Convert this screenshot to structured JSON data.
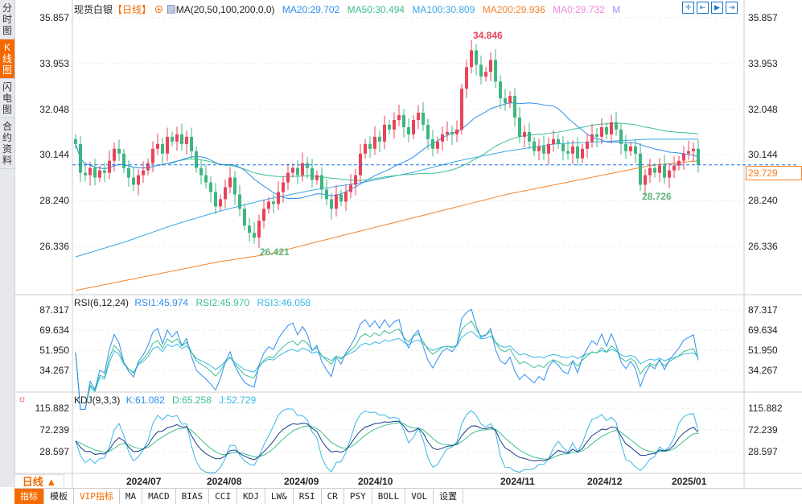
{
  "sidebar": {
    "tabs": [
      "分时图",
      "K线图",
      "闪电图",
      "合约资料"
    ],
    "active": 1
  },
  "header": {
    "symbol": "现货白银",
    "period": "【日线】",
    "ma_label": "MA(20,50,100,200,0,0)",
    "ma20": "MA20:29.702",
    "ma50": "MA50:30.494",
    "ma100": "MA100:30.809",
    "ma200": "MA200:29.936",
    "ma0": "MA0:29.732",
    "m": "M"
  },
  "colors": {
    "up": "#e8445a",
    "down": "#3eb680",
    "ma20": "#2f8fef",
    "ma50": "#3cc08a",
    "ma100": "#38a8e8",
    "ma200": "#f5822a",
    "last": "#1a73e8"
  },
  "price_axis": {
    "ticks": [
      "35.857",
      "33.953",
      "32.048",
      "30.144",
      "28.240",
      "26.336"
    ],
    "values": [
      35.857,
      33.953,
      32.048,
      30.144,
      28.24,
      26.336
    ]
  },
  "last_price": "29.729",
  "annotations": {
    "high": "34.846",
    "low1": "26.421",
    "low2": "28.726"
  },
  "rsi": {
    "label": "RSI(6,12,24)",
    "r1": "RSI1:45.974",
    "r2": "RSI2:45.970",
    "r3": "RSI3:46.058",
    "ticks": [
      "87.317",
      "69.634",
      "51.950",
      "34.267"
    ],
    "values": [
      87.317,
      69.634,
      51.95,
      34.267
    ]
  },
  "kdj": {
    "label": "KDJ(9,3,3)",
    "k": "K:61.082",
    "d": "D:65.258",
    "j": "J:52.729",
    "ticks": [
      "115.882",
      "72.239",
      "28.597"
    ],
    "values": [
      115.882,
      72.239,
      28.597
    ]
  },
  "dates": [
    "2024/07",
    "2024/08",
    "2024/09",
    "2024/10",
    "2024/11",
    "2024/12",
    "2025/01"
  ],
  "period_selector": "日线 ▲",
  "toolbar": [
    "指标",
    "模板",
    "VIP指标",
    "MA",
    "MACD",
    "BIAS",
    "CCI",
    "KDJ",
    "LW&",
    "RSI",
    "CR",
    "PSY",
    "BOLL",
    "VOL",
    "设置"
  ],
  "closes": [
    30.6,
    29.4,
    29.3,
    29.6,
    29.2,
    29.5,
    29.4,
    29.9,
    30.4,
    30.2,
    29.6,
    29.2,
    28.9,
    29.3,
    29.5,
    29.8,
    30.4,
    30.6,
    30.2,
    30.9,
    30.7,
    31.0,
    30.6,
    30.9,
    30.3,
    29.6,
    29.3,
    29.0,
    28.6,
    28.0,
    28.3,
    28.8,
    29.2,
    28.5,
    27.9,
    27.2,
    26.9,
    26.7,
    27.4,
    27.9,
    28.2,
    28.1,
    28.6,
    29.0,
    29.4,
    29.6,
    29.3,
    29.8,
    29.6,
    29.1,
    29.3,
    28.7,
    28.3,
    27.9,
    28.5,
    28.2,
    28.6,
    28.9,
    29.3,
    30.2,
    30.6,
    30.4,
    30.9,
    30.7,
    31.4,
    31.2,
    31.6,
    31.8,
    31.3,
    31.0,
    31.6,
    31.9,
    31.4,
    30.8,
    30.4,
    30.7,
    31.0,
    31.1,
    31.0,
    31.2,
    32.9,
    33.8,
    34.5,
    33.9,
    33.4,
    33.6,
    34.1,
    33.2,
    32.5,
    32.3,
    32.6,
    31.7,
    30.9,
    31.1,
    30.7,
    30.3,
    30.5,
    30.2,
    30.6,
    30.8,
    30.6,
    30.3,
    30.2,
    30.5,
    30.0,
    30.4,
    30.7,
    31.0,
    30.9,
    31.3,
    31.0,
    31.5,
    31.2,
    30.6,
    30.3,
    30.5,
    30.2,
    28.9,
    29.3,
    29.6,
    29.4,
    29.7,
    29.2,
    29.5,
    29.7,
    29.9,
    30.2,
    30.3,
    30.4,
    29.73
  ],
  "ma100_samples": [
    25.9,
    26.5,
    27.2,
    27.8,
    28.3,
    28.7,
    29.0,
    29.4,
    29.9,
    30.3,
    30.6,
    30.7,
    30.8,
    30.8
  ],
  "ma200_samples": [
    24.5,
    24.9,
    25.3,
    25.7,
    26.0,
    26.5,
    27.0,
    27.5,
    28.0,
    28.5,
    28.9,
    29.3,
    29.7,
    29.9
  ]
}
